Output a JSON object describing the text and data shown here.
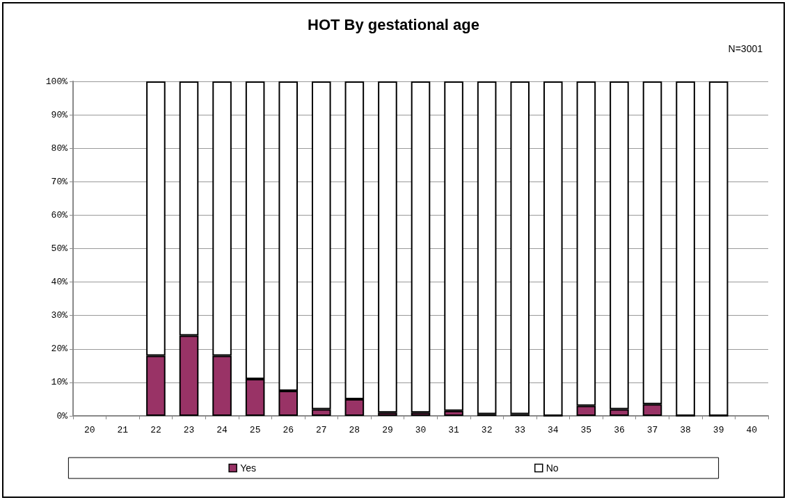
{
  "chart_data": {
    "type": "bar",
    "title": "HOT By gestational age",
    "annotations": [
      "N=3001"
    ],
    "categories": [
      "20",
      "21",
      "22",
      "23",
      "24",
      "25",
      "26",
      "27",
      "28",
      "29",
      "30",
      "31",
      "32",
      "33",
      "34",
      "35",
      "36",
      "37",
      "38",
      "39",
      "40"
    ],
    "stacked": true,
    "series": [
      {
        "name": "Yes",
        "color": "#993366",
        "values": [
          null,
          null,
          18,
          24,
          18,
          11,
          7.5,
          2,
          5,
          1,
          1,
          1.5,
          0.5,
          0.5,
          0,
          3,
          2,
          3.5,
          0,
          0,
          null
        ]
      },
      {
        "name": "No",
        "color": "#ffffff",
        "values": [
          null,
          null,
          82,
          76,
          82,
          89,
          92.5,
          98,
          95,
          99,
          99,
          98.5,
          99.5,
          99.5,
          100,
          97,
          98,
          96.5,
          100,
          100,
          null
        ]
      }
    ],
    "ylim": [
      0,
      100
    ],
    "yticks": [
      {
        "value": 0,
        "label": "0%"
      },
      {
        "value": 10,
        "label": "10%"
      },
      {
        "value": 20,
        "label": "20%"
      },
      {
        "value": 30,
        "label": "30%"
      },
      {
        "value": 40,
        "label": "40%"
      },
      {
        "value": 50,
        "label": "50%"
      },
      {
        "value": 60,
        "label": "60%"
      },
      {
        "value": 70,
        "label": "70%"
      },
      {
        "value": 80,
        "label": "80%"
      },
      {
        "value": 90,
        "label": "90%"
      },
      {
        "value": 100,
        "label": "100%"
      }
    ],
    "grid": "y",
    "legend": "bottom"
  }
}
